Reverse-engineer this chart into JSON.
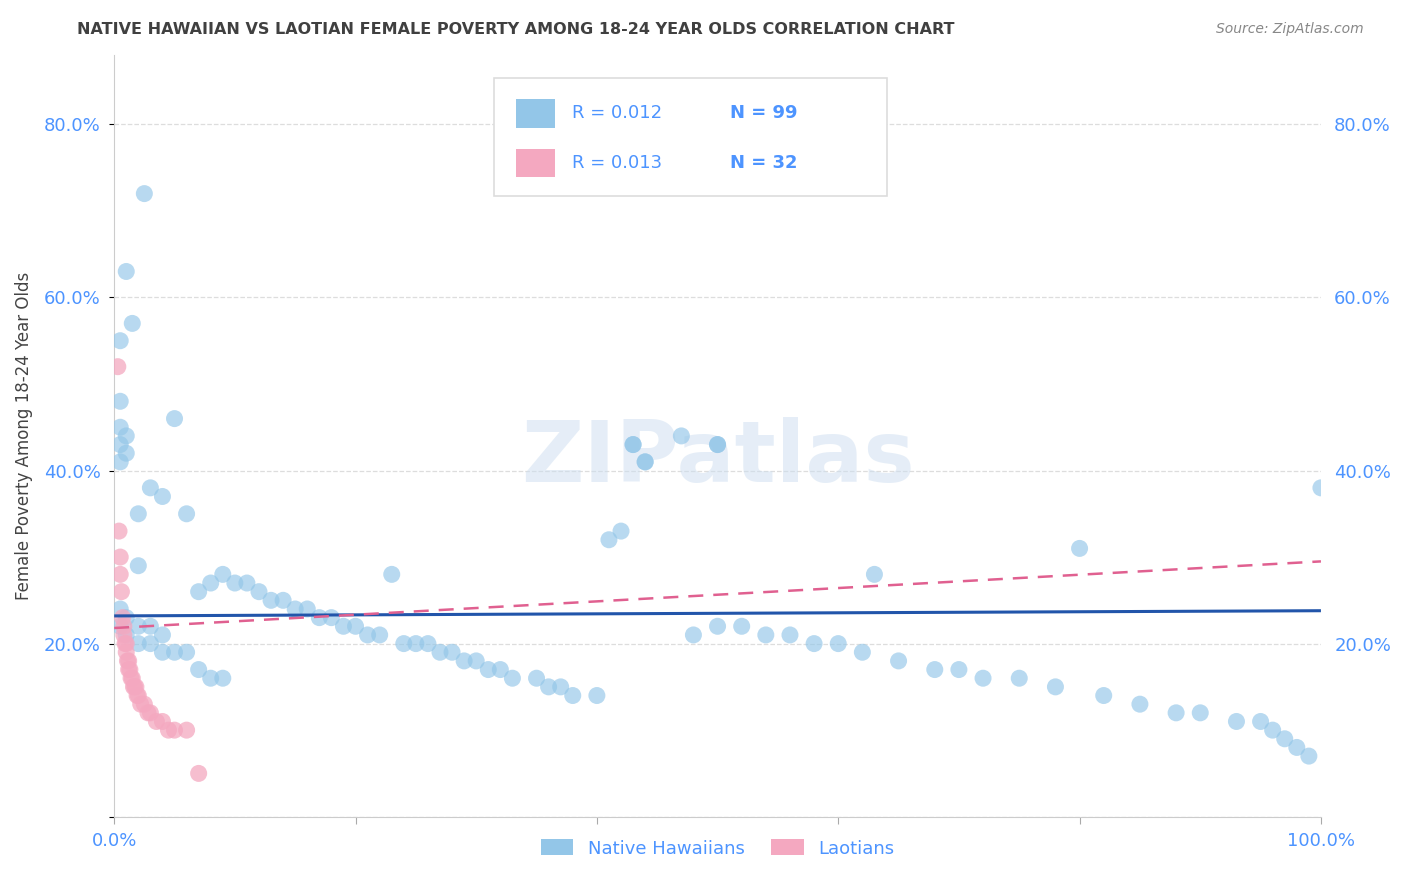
{
  "title": "NATIVE HAWAIIAN VS LAOTIAN FEMALE POVERTY AMONG 18-24 YEAR OLDS CORRELATION CHART",
  "source": "Source: ZipAtlas.com",
  "ylabel": "Female Poverty Among 18-24 Year Olds",
  "blue_label": "Native Hawaiians",
  "pink_label": "Laotians",
  "blue_R": "R = 0.012",
  "blue_N": "N = 99",
  "pink_R": "R = 0.013",
  "pink_N": "N = 32",
  "title_color": "#404040",
  "axis_color": "#4d94ff",
  "blue_color": "#93c6e8",
  "pink_color": "#f4a8c0",
  "blue_line_color": "#2255aa",
  "pink_line_color": "#e06090",
  "grid_color": "#dddddd",
  "watermark_color": "#ccddf0",
  "blue_scatter_x": [
    0.025,
    0.01,
    0.015,
    0.005,
    0.005,
    0.005,
    0.005,
    0.005,
    0.01,
    0.01,
    0.02,
    0.02,
    0.03,
    0.04,
    0.05,
    0.06,
    0.07,
    0.08,
    0.09,
    0.1,
    0.11,
    0.12,
    0.13,
    0.14,
    0.15,
    0.16,
    0.17,
    0.18,
    0.19,
    0.2,
    0.21,
    0.22,
    0.23,
    0.24,
    0.25,
    0.26,
    0.27,
    0.28,
    0.29,
    0.3,
    0.31,
    0.32,
    0.33,
    0.35,
    0.36,
    0.37,
    0.38,
    0.4,
    0.41,
    0.42,
    0.43,
    0.43,
    0.44,
    0.44,
    0.47,
    0.48,
    0.5,
    0.5,
    0.5,
    0.52,
    0.54,
    0.56,
    0.58,
    0.6,
    0.62,
    0.63,
    0.65,
    0.68,
    0.7,
    0.72,
    0.75,
    0.78,
    0.8,
    0.82,
    0.85,
    0.88,
    0.9,
    0.93,
    0.95,
    0.96,
    0.97,
    0.98,
    0.99,
    1.0,
    0.005,
    0.005,
    0.01,
    0.01,
    0.02,
    0.02,
    0.03,
    0.03,
    0.04,
    0.04,
    0.05,
    0.06,
    0.07,
    0.08,
    0.09
  ],
  "blue_scatter_y": [
    0.72,
    0.63,
    0.57,
    0.55,
    0.48,
    0.45,
    0.43,
    0.41,
    0.44,
    0.42,
    0.35,
    0.29,
    0.38,
    0.37,
    0.46,
    0.35,
    0.26,
    0.27,
    0.28,
    0.27,
    0.27,
    0.26,
    0.25,
    0.25,
    0.24,
    0.24,
    0.23,
    0.23,
    0.22,
    0.22,
    0.21,
    0.21,
    0.28,
    0.2,
    0.2,
    0.2,
    0.19,
    0.19,
    0.18,
    0.18,
    0.17,
    0.17,
    0.16,
    0.16,
    0.15,
    0.15,
    0.14,
    0.14,
    0.32,
    0.33,
    0.43,
    0.43,
    0.41,
    0.41,
    0.44,
    0.21,
    0.43,
    0.43,
    0.22,
    0.22,
    0.21,
    0.21,
    0.2,
    0.2,
    0.19,
    0.28,
    0.18,
    0.17,
    0.17,
    0.16,
    0.16,
    0.15,
    0.31,
    0.14,
    0.13,
    0.12,
    0.12,
    0.11,
    0.11,
    0.1,
    0.09,
    0.08,
    0.07,
    0.38,
    0.24,
    0.22,
    0.23,
    0.21,
    0.22,
    0.2,
    0.22,
    0.2,
    0.21,
    0.19,
    0.19,
    0.19,
    0.17,
    0.16,
    0.16
  ],
  "pink_scatter_x": [
    0.003,
    0.004,
    0.005,
    0.005,
    0.006,
    0.007,
    0.008,
    0.008,
    0.009,
    0.01,
    0.01,
    0.011,
    0.012,
    0.012,
    0.013,
    0.014,
    0.015,
    0.016,
    0.017,
    0.018,
    0.019,
    0.02,
    0.022,
    0.025,
    0.028,
    0.03,
    0.035,
    0.04,
    0.045,
    0.05,
    0.06,
    0.07
  ],
  "pink_scatter_y": [
    0.52,
    0.33,
    0.3,
    0.28,
    0.26,
    0.23,
    0.22,
    0.21,
    0.2,
    0.2,
    0.19,
    0.18,
    0.18,
    0.17,
    0.17,
    0.16,
    0.16,
    0.15,
    0.15,
    0.15,
    0.14,
    0.14,
    0.13,
    0.13,
    0.12,
    0.12,
    0.11,
    0.11,
    0.1,
    0.1,
    0.1,
    0.05
  ],
  "xlim": [
    0.0,
    1.0
  ],
  "ylim": [
    0.0,
    0.88
  ],
  "blue_line_y0": 0.232,
  "blue_line_y1": 0.238,
  "pink_line_x0": 0.0,
  "pink_line_x1": 1.0,
  "pink_line_y0": 0.218,
  "pink_line_y1": 0.295
}
